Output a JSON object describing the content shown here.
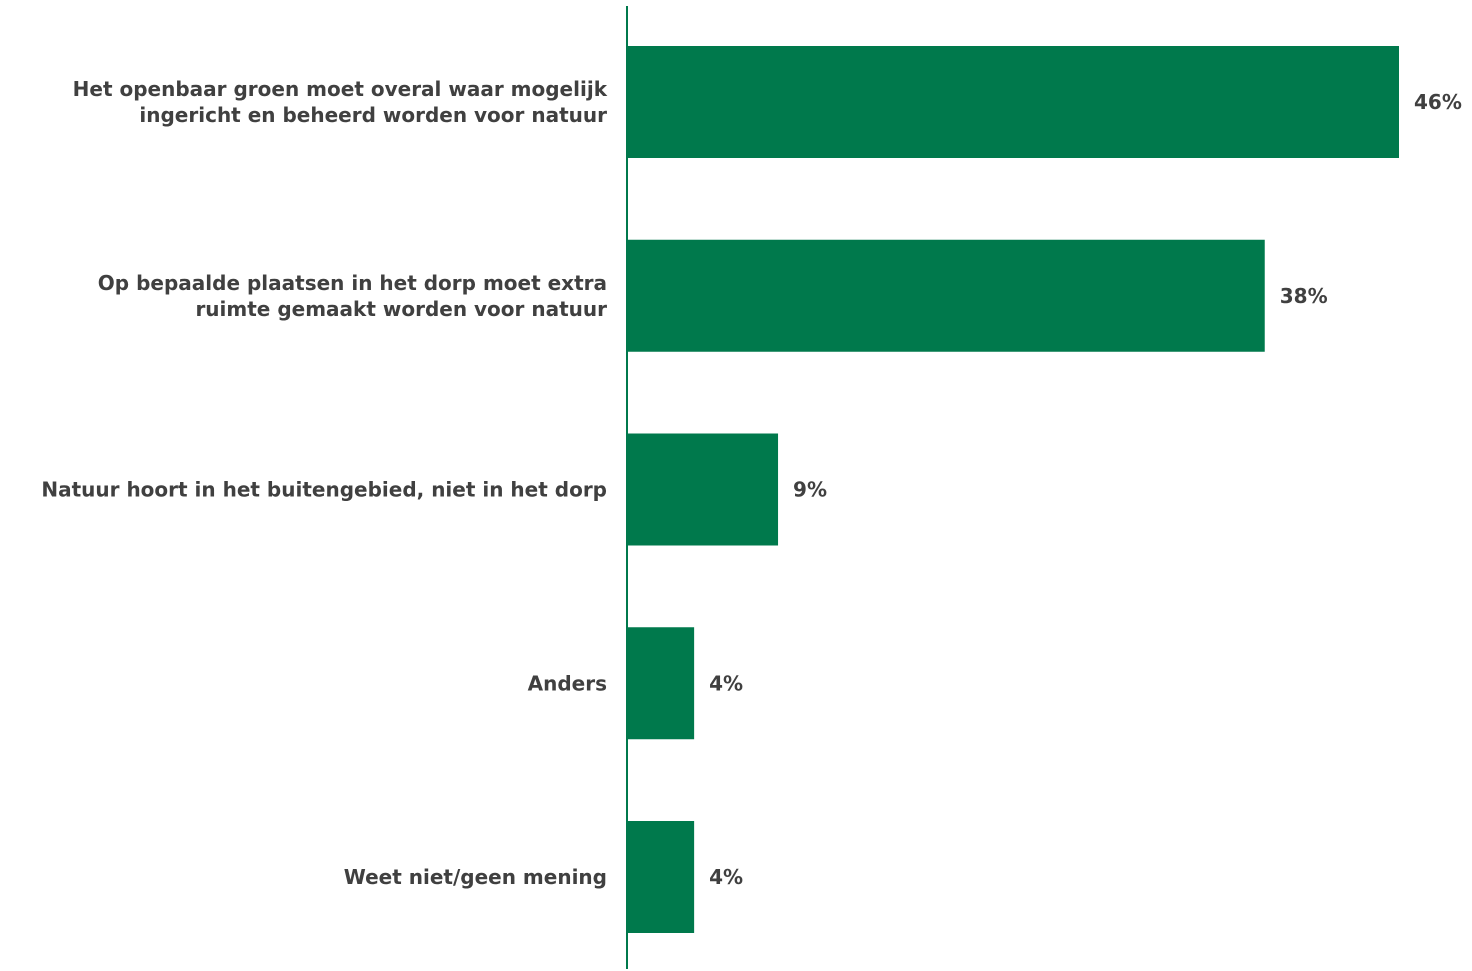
{
  "colors": {
    "bar": "#00794C",
    "axis": "#00794C",
    "text": "#404040"
  },
  "chart_data": {
    "type": "bar",
    "orientation": "horizontal",
    "categories": [
      [
        "Het openbaar groen moet overal waar mogelijk",
        "ingericht en beheerd worden voor natuur"
      ],
      [
        "Op bepaalde plaatsen in het dorp moet extra",
        "ruimte gemaakt worden voor natuur"
      ],
      [
        "Natuur hoort in het buitengebied, niet in het dorp"
      ],
      [
        "Anders"
      ],
      [
        "Weet niet/geen mening"
      ]
    ],
    "values": [
      46,
      38,
      9,
      4,
      4
    ],
    "value_labels": [
      "46%",
      "38%",
      "9%",
      "4%",
      "4%"
    ],
    "unit": "%",
    "title": "",
    "xlabel": "",
    "ylabel": "",
    "grid": false,
    "legend": "none"
  }
}
